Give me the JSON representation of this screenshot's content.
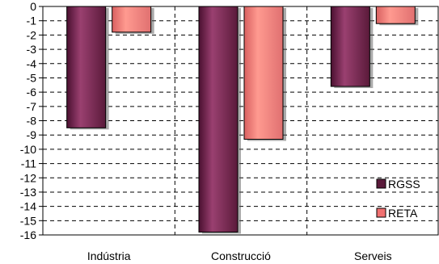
{
  "chart_data": {
    "type": "bar",
    "title": "",
    "categories": [
      "Indústria",
      "Construcció",
      "Serveis"
    ],
    "series": [
      {
        "name": "RGSS",
        "color": "#7a2a52",
        "values": [
          -8.5,
          -15.8,
          -5.6
        ]
      },
      {
        "name": "RETA",
        "color": "#f08080",
        "values": [
          -1.8,
          -9.3,
          -1.2
        ]
      }
    ],
    "ylim": [
      -16,
      0
    ],
    "yticks": [
      0,
      -1,
      -2,
      -3,
      -4,
      -5,
      -6,
      -7,
      -8,
      -9,
      -10,
      -11,
      -12,
      -13,
      -14,
      -15,
      -16
    ],
    "ytick_labels": [
      "0",
      "-1",
      "-2",
      "-3",
      "-4",
      "-5",
      "-6",
      "-7",
      "-8",
      "-9",
      "-10",
      "-11",
      "-12",
      "-13",
      "-14",
      "-15",
      "-16"
    ],
    "xlabel": "",
    "ylabel": "",
    "grid": true,
    "legend": "bottom-right"
  }
}
